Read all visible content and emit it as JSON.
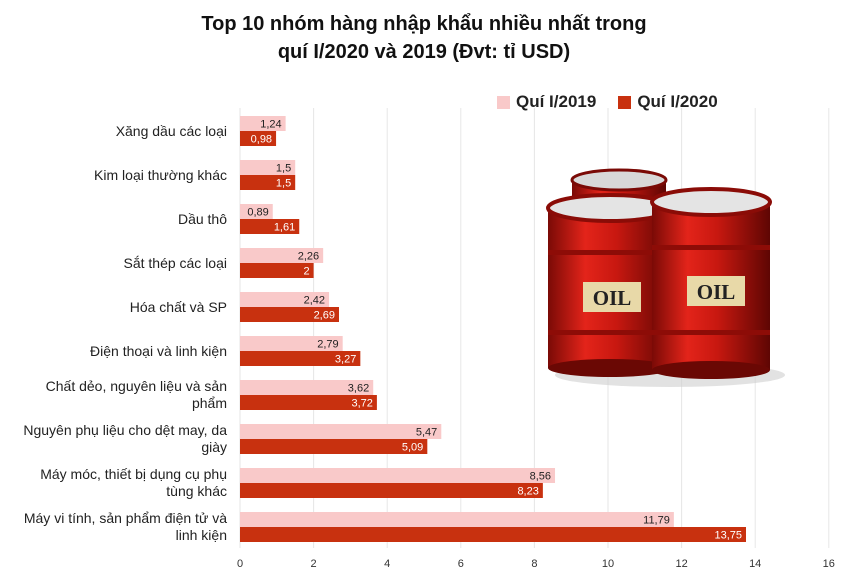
{
  "chart_data": {
    "type": "bar",
    "orientation": "horizontal",
    "title_line1": "Top 10 nhóm hàng nhập khẩu nhiều nhất trong",
    "title_line2": "quí I/2020 và 2019 (Đvt: tỉ USD)",
    "categories": [
      [
        "Xăng dầu các loại"
      ],
      [
        "Kim loại thường khác"
      ],
      [
        "Dầu thô"
      ],
      [
        "Sắt thép các loại"
      ],
      [
        "Hóa chất và SP"
      ],
      [
        "Điện thoại và linh kiện"
      ],
      [
        "Chất dẻo, nguyên liệu và sản",
        "phẩm"
      ],
      [
        "Nguyên phụ liệu cho dệt may, da",
        "giày"
      ],
      [
        "Máy móc, thiết bị dụng cụ phụ",
        "tùng khác"
      ],
      [
        "Máy vi tính, sản phẩm điện tử và",
        "linh kiện"
      ]
    ],
    "series": [
      {
        "name": "Quí I/2019",
        "color": "#f9c9c9",
        "values": [
          1.24,
          1.5,
          0.89,
          2.26,
          2.42,
          2.79,
          3.62,
          5.47,
          8.56,
          11.79
        ],
        "labels": [
          "1,24",
          "1,5",
          "0,89",
          "2,26",
          "2,42",
          "2,79",
          "3,62",
          "5,47",
          "8,56",
          "11,79"
        ]
      },
      {
        "name": "Quí I/2020",
        "color": "#c8310f",
        "values": [
          0.98,
          1.5,
          1.61,
          2,
          2.69,
          3.27,
          3.72,
          5.09,
          8.23,
          13.75
        ],
        "labels": [
          "0,98",
          "1,5",
          "1,61",
          "2",
          "2,69",
          "3,27",
          "3,72",
          "5,09",
          "8,23",
          "13,75"
        ]
      }
    ],
    "xlim": [
      0,
      16
    ],
    "xticks": [
      "0",
      "2",
      "4",
      "6",
      "8",
      "10",
      "12",
      "14",
      "16"
    ],
    "grid": true,
    "legend_position": "top-right",
    "decoration_text": [
      "OIL",
      "OIL"
    ]
  }
}
